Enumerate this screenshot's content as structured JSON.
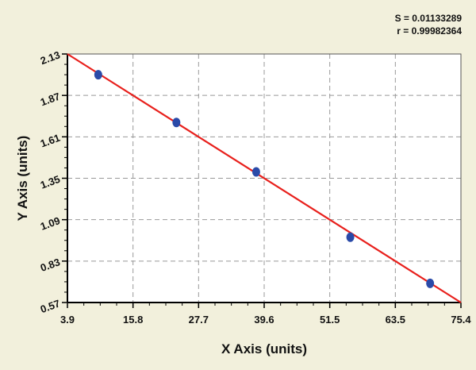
{
  "chart_data": {
    "type": "scatter",
    "title": "",
    "xlabel": "X Axis (units)",
    "ylabel": "Y Axis (units)",
    "xlim": [
      3.9,
      75.4
    ],
    "ylim": [
      0.57,
      2.13
    ],
    "xticks": [
      "3.9",
      "15.8",
      "27.7",
      "39.6",
      "51.5",
      "63.5",
      "75.4"
    ],
    "yticks": [
      "0.57",
      "0.83",
      "1.09",
      "1.35",
      "1.61",
      "1.87",
      "2.13"
    ],
    "grid": true,
    "points": [
      {
        "x": 9.5,
        "y": 2.0
      },
      {
        "x": 23.7,
        "y": 1.7
      },
      {
        "x": 38.2,
        "y": 1.39
      },
      {
        "x": 55.3,
        "y": 0.98
      },
      {
        "x": 69.8,
        "y": 0.69
      }
    ],
    "fit_line": {
      "x": [
        3.9,
        75.4
      ],
      "y": [
        2.13,
        0.57
      ]
    },
    "annotations": {
      "s": "S = 0.01133289",
      "r": "r = 0.99982364"
    },
    "colors": {
      "points": "#2a4aa8",
      "line": "#e8201c",
      "background": "#f2f0dc",
      "plot": "#ffffff"
    }
  }
}
